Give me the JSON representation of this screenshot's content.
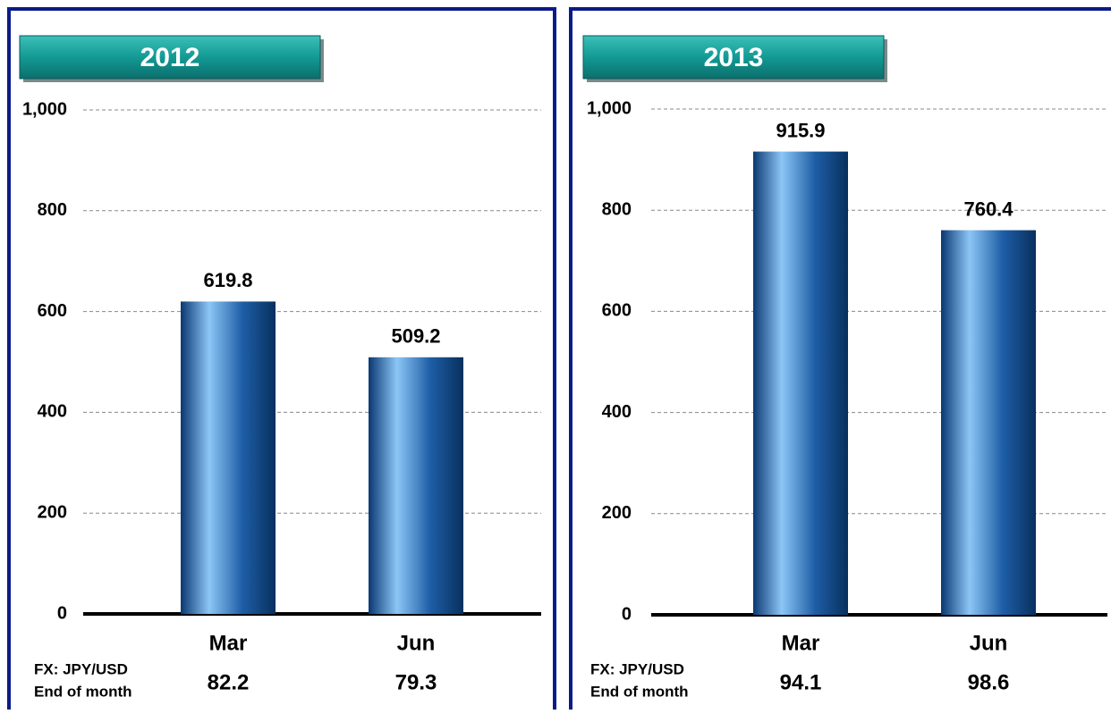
{
  "chart_data": [
    {
      "type": "bar",
      "title": "2012",
      "categories": [
        "Mar",
        "Jun"
      ],
      "values": [
        619.8,
        509.2
      ],
      "ylim": [
        0,
        1000
      ],
      "yticks": [
        0,
        200,
        400,
        600,
        800,
        {
          "value": 1000,
          "label": "1,000"
        }
      ],
      "grid": true,
      "fx_label": [
        "FX: JPY/USD",
        "End of month"
      ],
      "fx_values": [
        82.2,
        79.3
      ]
    },
    {
      "type": "bar",
      "title": "2013",
      "categories": [
        "Mar",
        "Jun"
      ],
      "values": [
        915.9,
        760.4
      ],
      "ylim": [
        0,
        1000
      ],
      "yticks": [
        0,
        200,
        400,
        600,
        800,
        {
          "value": 1000,
          "label": "1,000"
        }
      ],
      "grid": true,
      "fx_label": [
        "FX: JPY/USD",
        "End of month"
      ],
      "fx_values": [
        94.1,
        98.6
      ]
    }
  ]
}
